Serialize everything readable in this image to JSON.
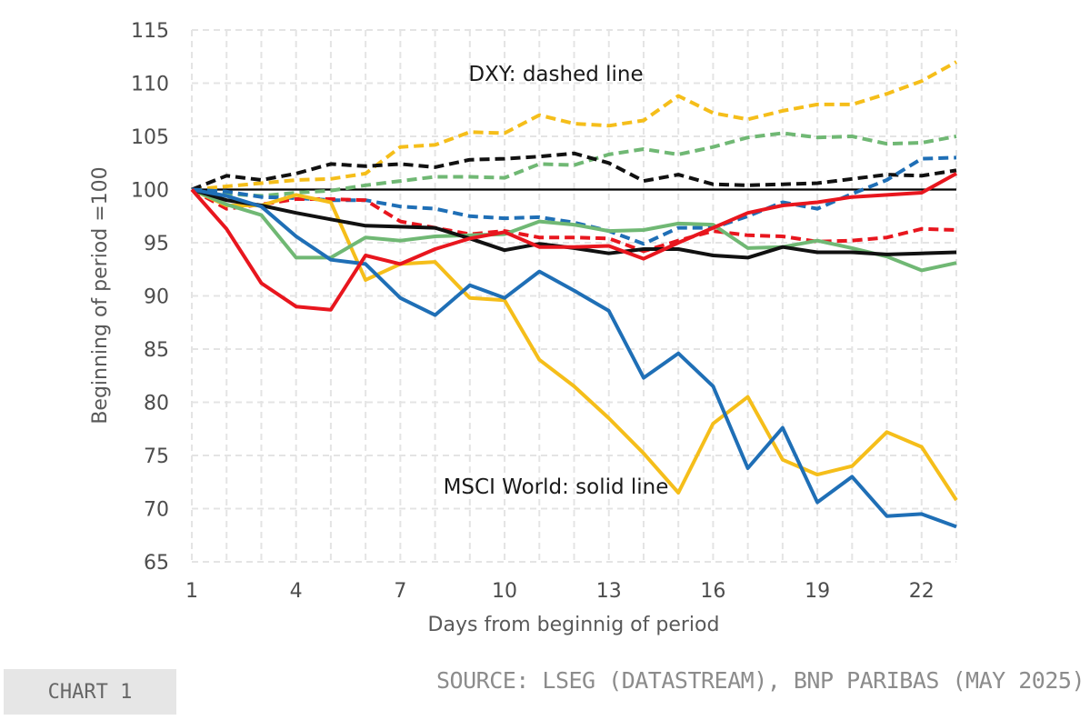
{
  "chart_data": {
    "type": "line",
    "title": "",
    "xlabel": "Days from beginnig of period",
    "ylabel": "Beginning of  period =100",
    "xlim": [
      1,
      23
    ],
    "ylim": [
      65,
      115
    ],
    "xticks": [
      1,
      4,
      7,
      10,
      13,
      16,
      19,
      22
    ],
    "yticks": [
      65,
      70,
      75,
      80,
      85,
      90,
      95,
      100,
      105,
      110,
      115
    ],
    "grid": "vertical dashed",
    "legend": "none",
    "annotations": [
      {
        "text": "DXY: dashed line",
        "x": 12,
        "y": 110.2
      },
      {
        "text": "MSCI World: solid line",
        "x": 12,
        "y": 71.4
      }
    ],
    "x": [
      1,
      2,
      3,
      4,
      5,
      6,
      7,
      8,
      9,
      10,
      11,
      12,
      13,
      14,
      15,
      16,
      17,
      18,
      19,
      20,
      21,
      22,
      23
    ],
    "series": [
      {
        "style": "dashed",
        "color": "#F5BE1A",
        "values": [
          100,
          100.3,
          100.6,
          100.9,
          101,
          101.5,
          104,
          104.2,
          105.4,
          105.3,
          107,
          106.2,
          106,
          106.5,
          108.8,
          107.2,
          106.6,
          107.4,
          108,
          108,
          109,
          110.2,
          112
        ]
      },
      {
        "style": "dashed",
        "color": "#70B874",
        "values": [
          100,
          99.6,
          99.4,
          99.7,
          99.9,
          100.4,
          100.8,
          101.2,
          101.2,
          101.1,
          102.4,
          102.3,
          103.3,
          103.8,
          103.3,
          104,
          104.9,
          105.3,
          104.9,
          105,
          104.3,
          104.4,
          105
        ]
      },
      {
        "style": "dashed",
        "color": "#111111",
        "values": [
          100,
          101.3,
          100.9,
          101.5,
          102.4,
          102.2,
          102.4,
          102.1,
          102.8,
          102.9,
          103.1,
          103.4,
          102.5,
          100.8,
          101.4,
          100.5,
          100.4,
          100.5,
          100.6,
          101,
          101.4,
          101.3,
          101.8
        ]
      },
      {
        "style": "dashed",
        "color": "#1F6FB6",
        "values": [
          100,
          99.8,
          99.3,
          99.2,
          99,
          99,
          98.4,
          98.2,
          97.5,
          97.3,
          97.4,
          96.9,
          96.1,
          94.9,
          96.4,
          96.4,
          97.5,
          98.8,
          98.2,
          99.6,
          100.9,
          102.9,
          103
        ]
      },
      {
        "style": "dashed",
        "color": "#E8161E",
        "values": [
          100,
          98.2,
          98.6,
          99.1,
          99.1,
          99,
          97,
          96.4,
          95.8,
          96.1,
          95.5,
          95.5,
          95.4,
          94.2,
          95.2,
          96.1,
          95.7,
          95.6,
          95.1,
          95.2,
          95.5,
          96.3,
          96.2
        ]
      },
      {
        "style": "solid",
        "color": "#F5BE1A",
        "values": [
          100,
          98.5,
          98.5,
          99.5,
          98.8,
          91.5,
          93,
          93.2,
          89.8,
          89.6,
          84,
          81.5,
          78.5,
          75.2,
          71.5,
          78,
          80.5,
          74.6,
          73.2,
          74,
          77.2,
          75.8,
          70.8
        ]
      },
      {
        "style": "solid",
        "color": "#70B874",
        "values": [
          100,
          98.6,
          97.6,
          93.6,
          93.6,
          95.5,
          95.2,
          95.6,
          95.7,
          95.8,
          97,
          96.7,
          96.1,
          96.2,
          96.8,
          96.7,
          94.5,
          94.6,
          95.2,
          94.5,
          93.7,
          92.4,
          93.1
        ]
      },
      {
        "style": "solid",
        "color": "#111111",
        "values": [
          100,
          99,
          98.5,
          97.8,
          97.2,
          96.6,
          96.5,
          96.4,
          95.4,
          94.3,
          94.9,
          94.5,
          94,
          94.4,
          94.4,
          93.8,
          93.6,
          94.6,
          94.1,
          94.1,
          93.9,
          94,
          94.1
        ]
      },
      {
        "style": "solid",
        "color": "#1F6FB6",
        "values": [
          100,
          99.4,
          98.4,
          95.6,
          93.4,
          93,
          89.8,
          88.2,
          91,
          89.8,
          92.3,
          90.5,
          88.6,
          82.3,
          84.6,
          81.5,
          73.8,
          77.6,
          70.6,
          73,
          69.3,
          69.5,
          68.3
        ]
      },
      {
        "style": "solid",
        "color": "#E8161E",
        "values": [
          100,
          96.3,
          91.2,
          89,
          88.7,
          93.8,
          93,
          94.4,
          95.4,
          96,
          94.6,
          94.6,
          94.7,
          93.5,
          95,
          96.4,
          97.8,
          98.5,
          98.8,
          99.3,
          99.5,
          99.7,
          101.5
        ]
      }
    ],
    "reference_line": {
      "y": 100,
      "color": "#000000"
    }
  },
  "footer": {
    "chart_label": "CHART 1",
    "source": "SOURCE: LSEG (DATASTREAM), BNP PARIBAS (MAY 2025)"
  }
}
